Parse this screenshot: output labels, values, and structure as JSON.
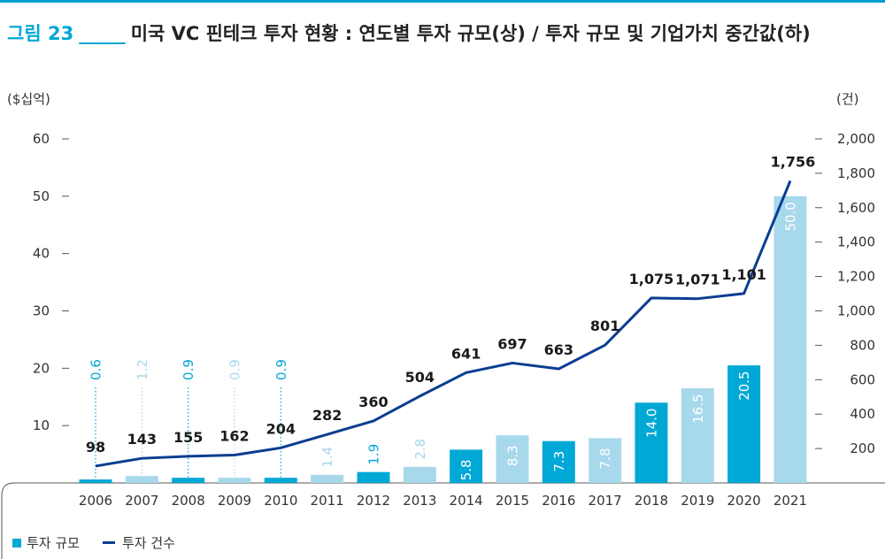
{
  "title": {
    "figure_no": "그림 23",
    "blank": "_____",
    "text": "미국 VC 핀테크 투자 현황 : 연도별 투자 규모(상) / 투자 규모 및 기업가치 중간값(하)"
  },
  "colors": {
    "accent": "#00a8d6",
    "bar_light": "#a8d8ec",
    "line": "#0b3d91"
  },
  "chart_data": {
    "type": "bar",
    "categories": [
      "2006",
      "2007",
      "2008",
      "2009",
      "2010",
      "2011",
      "2012",
      "2013",
      "2014",
      "2015",
      "2016",
      "2017",
      "2018",
      "2019",
      "2020",
      "2021"
    ],
    "series": [
      {
        "name": "투자 규모",
        "type": "bar",
        "axis": "left",
        "values": [
          0.6,
          1.2,
          0.9,
          0.9,
          0.9,
          1.4,
          1.9,
          2.8,
          5.8,
          8.3,
          7.3,
          7.8,
          14.0,
          16.5,
          20.5,
          50.0
        ],
        "labels": [
          "0.6",
          "1.2",
          "0.9",
          "0.9",
          "0.9",
          "1.4",
          "1.9",
          "2.8",
          "5.8",
          "8.3",
          "7.3",
          "7.8",
          "14.0",
          "16.5",
          "20.5",
          "50.0"
        ],
        "shade": [
          "dark",
          "light",
          "dark",
          "light",
          "dark",
          "light",
          "dark",
          "light",
          "dark",
          "light",
          "dark",
          "light",
          "dark",
          "light",
          "dark",
          "light"
        ]
      },
      {
        "name": "투자 건수",
        "type": "line",
        "axis": "right",
        "values": [
          98,
          143,
          155,
          162,
          204,
          282,
          360,
          504,
          641,
          697,
          663,
          801,
          1075,
          1071,
          1101,
          1756
        ],
        "labels": [
          "98",
          "143",
          "155",
          "162",
          "204",
          "282",
          "360",
          "504",
          "641",
          "697",
          "663",
          "801",
          "1,075",
          "1,071",
          "1,101",
          "1,756"
        ]
      }
    ],
    "left_axis": {
      "unit": "($십억)",
      "ylim": [
        0,
        60
      ],
      "ticks": [
        10,
        20,
        30,
        40,
        50,
        60
      ],
      "tick_labels": [
        "10",
        "20",
        "30",
        "40",
        "50",
        "60"
      ]
    },
    "right_axis": {
      "unit": "(건)",
      "ylim": [
        0,
        2000
      ],
      "ticks": [
        200,
        400,
        600,
        800,
        1000,
        1200,
        1400,
        1600,
        1800,
        2000
      ],
      "tick_labels": [
        "200",
        "400",
        "600",
        "800",
        "1,000",
        "1,200",
        "1,400",
        "1,600",
        "1,800",
        "2,000"
      ]
    },
    "legend": {
      "position": "bottom-left",
      "items": [
        "투자 규모",
        "투자 건수"
      ]
    }
  }
}
